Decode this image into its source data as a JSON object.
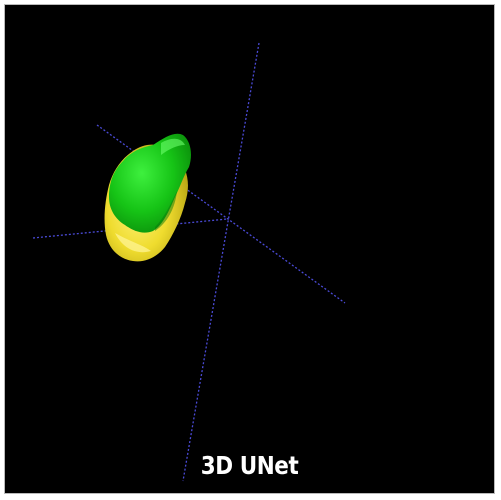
{
  "viewer": {
    "caption": "3D UNet",
    "background_color": "#000000",
    "frame_color": "#ffffff"
  },
  "segmentation": {
    "structures": [
      {
        "name": "yellow-region",
        "color": "#f2e63c"
      },
      {
        "name": "green-region",
        "color": "#1ec81e"
      }
    ]
  },
  "axes": {
    "color": "#4a4ad6",
    "style": "dotted"
  }
}
